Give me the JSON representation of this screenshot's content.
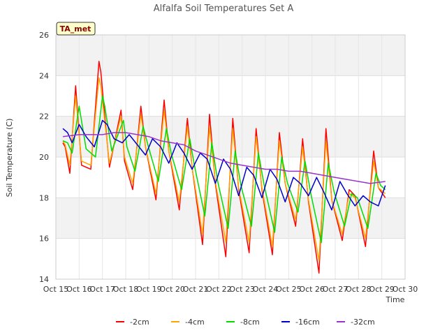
{
  "chart_data": {
    "type": "line",
    "title": "Alfalfa Soil Temperatures Set A",
    "xlabel": "Time",
    "ylabel": "Soil Temperature (C)",
    "xlim": [
      15,
      30
    ],
    "ylim": [
      14,
      26
    ],
    "x_ticks": [
      15,
      16,
      17,
      18,
      19,
      20,
      21,
      22,
      23,
      24,
      25,
      26,
      27,
      28,
      29,
      30
    ],
    "x_tick_labels": [
      "Oct 15",
      "Oct 16",
      "Oct 17",
      "Oct 18",
      "Oct 19",
      "Oct 20",
      "Oct 21",
      "Oct 22",
      "Oct 23",
      "Oct 24",
      "Oct 25",
      "Oct 26",
      "Oct 27",
      "Oct 28",
      "Oct 29",
      "Oct 30"
    ],
    "y_ticks": [
      14,
      16,
      18,
      20,
      22,
      24,
      26
    ],
    "y_tick_labels": [
      "14",
      "16",
      "18",
      "20",
      "22",
      "24",
      "26"
    ],
    "grid": true,
    "band_colors": [
      "#f2f2f2",
      "#ffffff"
    ],
    "legend_position": "bottom",
    "annotation": "TA_met",
    "series": [
      {
        "name": "-2cm",
        "color": "#ff0000",
        "x": [
          15.3,
          15.4,
          15.6,
          15.85,
          16.1,
          16.5,
          16.85,
          16.93,
          17.3,
          17.8,
          17.95,
          18.3,
          18.65,
          18.85,
          19.3,
          19.65,
          19.85,
          20.3,
          20.65,
          20.85,
          21.3,
          21.6,
          21.85,
          22.3,
          22.6,
          22.85,
          23.3,
          23.6,
          23.85,
          24.3,
          24.6,
          24.85,
          25.3,
          25.6,
          25.85,
          26.3,
          26.6,
          26.85,
          27.3,
          27.6,
          27.85,
          28.3,
          28.65,
          28.85,
          29.15
        ],
        "y": [
          20.7,
          20.5,
          19.2,
          23.5,
          19.6,
          19.4,
          24.7,
          24.2,
          19.5,
          22.3,
          19.8,
          18.4,
          22.5,
          20.5,
          17.9,
          22.8,
          20.3,
          17.4,
          21.9,
          19.5,
          15.7,
          22.1,
          18.7,
          15.1,
          21.9,
          18.4,
          15.3,
          21.4,
          18.4,
          15.2,
          21.2,
          18.7,
          16.6,
          20.9,
          17.8,
          14.3,
          21.4,
          17.9,
          15.9,
          18.4,
          18.1,
          15.6,
          20.3,
          18.5,
          18.0
        ]
      },
      {
        "name": "-4cm",
        "color": "#ffa500",
        "x": [
          15.3,
          15.4,
          15.6,
          15.85,
          16.1,
          16.5,
          16.85,
          16.93,
          17.3,
          17.8,
          17.95,
          18.3,
          18.65,
          18.85,
          19.3,
          19.65,
          19.85,
          20.3,
          20.65,
          20.85,
          21.3,
          21.6,
          21.85,
          22.3,
          22.6,
          22.85,
          23.3,
          23.6,
          23.85,
          24.3,
          24.6,
          24.85,
          25.3,
          25.6,
          25.85,
          26.3,
          26.6,
          26.85,
          27.3,
          27.6,
          27.85,
          28.3,
          28.65,
          28.85,
          29.15
        ],
        "y": [
          20.8,
          20.6,
          19.6,
          23.0,
          19.8,
          19.6,
          23.9,
          23.5,
          19.7,
          22.0,
          20.0,
          18.7,
          22.1,
          20.5,
          18.2,
          22.3,
          20.3,
          17.8,
          21.5,
          19.5,
          16.2,
          21.5,
          18.8,
          15.8,
          21.4,
          18.5,
          15.8,
          21.0,
          18.5,
          15.6,
          20.8,
          18.7,
          16.9,
          20.5,
          17.9,
          14.9,
          20.8,
          17.9,
          16.2,
          18.2,
          18.0,
          16.0,
          19.8,
          18.5,
          18.2
        ]
      },
      {
        "name": "-8cm",
        "color": "#00dd00",
        "x": [
          15.3,
          15.5,
          15.7,
          16.0,
          16.3,
          16.7,
          17.0,
          17.1,
          17.4,
          17.9,
          18.05,
          18.4,
          18.75,
          18.95,
          19.4,
          19.75,
          19.95,
          20.4,
          20.75,
          20.95,
          21.4,
          21.7,
          21.95,
          22.4,
          22.7,
          22.95,
          23.4,
          23.7,
          23.95,
          24.4,
          24.7,
          24.95,
          25.4,
          25.7,
          25.95,
          26.4,
          26.7,
          26.95,
          27.4,
          27.7,
          27.95,
          28.4,
          28.75,
          28.95,
          29.15
        ],
        "y": [
          20.8,
          20.7,
          20.2,
          22.5,
          20.4,
          20.0,
          23.0,
          22.5,
          20.3,
          21.8,
          20.5,
          19.3,
          21.5,
          20.6,
          18.8,
          21.4,
          20.2,
          18.4,
          20.9,
          19.6,
          17.1,
          20.7,
          18.8,
          16.5,
          20.3,
          18.6,
          16.6,
          20.2,
          18.6,
          16.3,
          20.0,
          18.7,
          17.3,
          19.8,
          18.2,
          15.8,
          19.7,
          18.3,
          16.6,
          18.2,
          18.0,
          16.5,
          19.2,
          18.6,
          18.4
        ]
      },
      {
        "name": "-16cm",
        "color": "#0000cc",
        "x": [
          15.3,
          15.5,
          15.7,
          16.0,
          16.3,
          16.65,
          17.0,
          17.2,
          17.5,
          17.85,
          18.15,
          18.5,
          18.85,
          19.15,
          19.5,
          19.85,
          20.2,
          20.5,
          20.85,
          21.2,
          21.5,
          21.85,
          22.2,
          22.5,
          22.85,
          23.2,
          23.5,
          23.85,
          24.2,
          24.5,
          24.85,
          25.2,
          25.5,
          25.85,
          26.2,
          26.5,
          26.85,
          27.2,
          27.5,
          27.85,
          28.2,
          28.5,
          28.85,
          29.15
        ],
        "y": [
          21.4,
          21.2,
          20.7,
          21.6,
          21.0,
          20.5,
          21.8,
          21.6,
          20.9,
          20.7,
          21.1,
          20.6,
          20.1,
          20.9,
          20.5,
          19.7,
          20.7,
          20.2,
          19.4,
          20.2,
          19.9,
          18.7,
          19.9,
          19.4,
          18.1,
          19.5,
          19.1,
          18.0,
          19.4,
          18.9,
          17.8,
          19.0,
          18.7,
          18.1,
          19.0,
          18.3,
          17.4,
          18.8,
          18.2,
          17.6,
          18.1,
          17.8,
          17.6,
          18.6
        ]
      },
      {
        "name": "-32cm",
        "color": "#9933cc",
        "x": [
          15.3,
          16.0,
          16.5,
          17.0,
          17.5,
          18.0,
          18.5,
          19.0,
          19.5,
          20.0,
          20.5,
          21.0,
          21.5,
          22.0,
          22.5,
          23.0,
          23.5,
          24.0,
          24.5,
          25.0,
          25.5,
          26.0,
          26.5,
          27.0,
          27.5,
          28.0,
          28.5,
          29.15
        ],
        "y": [
          21.0,
          21.1,
          21.1,
          21.1,
          21.2,
          21.2,
          21.1,
          21.0,
          20.8,
          20.7,
          20.6,
          20.3,
          20.1,
          19.9,
          19.7,
          19.6,
          19.5,
          19.4,
          19.4,
          19.3,
          19.3,
          19.2,
          19.1,
          19.0,
          18.9,
          18.8,
          18.7,
          18.8
        ]
      }
    ]
  }
}
